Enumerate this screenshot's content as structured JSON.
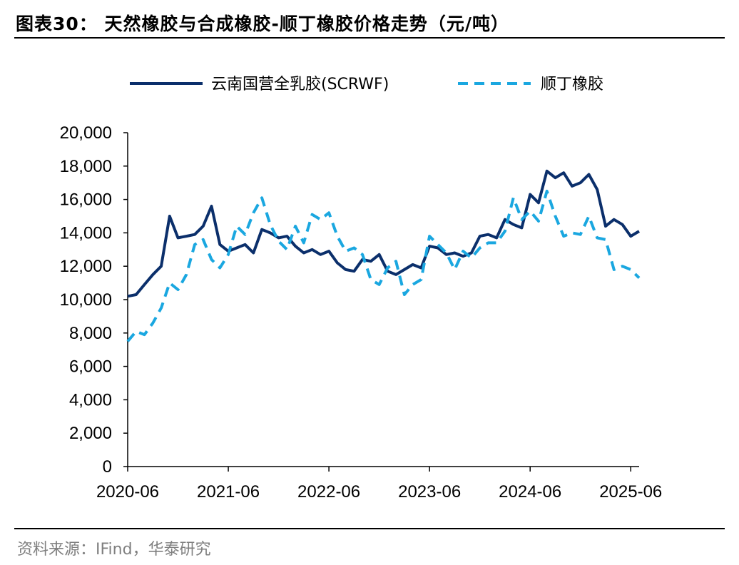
{
  "header": {
    "title": "图表30：  天然橡胶与合成橡胶-顺丁橡胶价格走势（元/吨）"
  },
  "footer": {
    "source": "资料来源：IFind，华泰研究"
  },
  "chart_data": {
    "type": "line",
    "title": "天然橡胶与合成橡胶-顺丁橡胶价格走势（元/吨）",
    "xlabel": "",
    "ylabel": "",
    "ylim": [
      0,
      20000
    ],
    "xlim": [
      "2020-06",
      "2025-07"
    ],
    "yticks": [
      0,
      2000,
      4000,
      6000,
      8000,
      10000,
      12000,
      14000,
      16000,
      18000,
      20000
    ],
    "ytick_labels": [
      "0",
      "2,000",
      "4,000",
      "6,000",
      "8,000",
      "10,000",
      "12,000",
      "14,000",
      "16,000",
      "18,000",
      "20,000"
    ],
    "xtick_labels": [
      "2020-06",
      "2021-06",
      "2022-06",
      "2023-06",
      "2024-06",
      "2025-06"
    ],
    "legend": "top",
    "grid": false,
    "series": [
      {
        "name": "云南国营全乳胶(SCRWF)",
        "color": "#0b2f6b",
        "style": "solid",
        "x": [
          "2020-06",
          "2020-07",
          "2020-08",
          "2020-09",
          "2020-10",
          "2020-11",
          "2020-12",
          "2021-01",
          "2021-02",
          "2021-03",
          "2021-04",
          "2021-05",
          "2021-06",
          "2021-07",
          "2021-08",
          "2021-09",
          "2021-10",
          "2021-11",
          "2021-12",
          "2022-01",
          "2022-02",
          "2022-03",
          "2022-04",
          "2022-05",
          "2022-06",
          "2022-07",
          "2022-08",
          "2022-09",
          "2022-10",
          "2022-11",
          "2022-12",
          "2023-01",
          "2023-02",
          "2023-03",
          "2023-04",
          "2023-05",
          "2023-06",
          "2023-07",
          "2023-08",
          "2023-09",
          "2023-10",
          "2023-11",
          "2023-12",
          "2024-01",
          "2024-02",
          "2024-03",
          "2024-04",
          "2024-05",
          "2024-06",
          "2024-07",
          "2024-08",
          "2024-09",
          "2024-10",
          "2024-11",
          "2024-12",
          "2025-01",
          "2025-02",
          "2025-03",
          "2025-04",
          "2025-05",
          "2025-06",
          "2025-07"
        ],
        "values": [
          10200,
          10300,
          10900,
          11500,
          12000,
          15000,
          13700,
          13800,
          13900,
          14400,
          15600,
          13300,
          12900,
          13100,
          13300,
          12800,
          14200,
          14000,
          13700,
          13800,
          13200,
          12800,
          13000,
          12700,
          12900,
          12200,
          11800,
          11700,
          12400,
          12300,
          12700,
          11700,
          11500,
          11800,
          12100,
          11900,
          13200,
          13100,
          12700,
          12800,
          12600,
          12800,
          13800,
          13900,
          13700,
          14800,
          14500,
          14300,
          16300,
          15800,
          17700,
          17300,
          17600,
          16800,
          17000,
          17500,
          16600,
          14400,
          14800,
          14500,
          13800,
          14100
        ]
      },
      {
        "name": "顺丁橡胶",
        "color": "#1aa7e0",
        "style": "dashed",
        "x": [
          "2020-06",
          "2020-07",
          "2020-08",
          "2020-09",
          "2020-10",
          "2020-11",
          "2020-12",
          "2021-01",
          "2021-02",
          "2021-03",
          "2021-04",
          "2021-05",
          "2021-06",
          "2021-07",
          "2021-08",
          "2021-09",
          "2021-10",
          "2021-11",
          "2021-12",
          "2022-01",
          "2022-02",
          "2022-03",
          "2022-04",
          "2022-05",
          "2022-06",
          "2022-07",
          "2022-08",
          "2022-09",
          "2022-10",
          "2022-11",
          "2022-12",
          "2023-01",
          "2023-02",
          "2023-03",
          "2023-04",
          "2023-05",
          "2023-06",
          "2023-07",
          "2023-08",
          "2023-09",
          "2023-10",
          "2023-11",
          "2023-12",
          "2024-01",
          "2024-02",
          "2024-03",
          "2024-04",
          "2024-05",
          "2024-06",
          "2024-07",
          "2024-08",
          "2024-09",
          "2024-10",
          "2024-11",
          "2024-12",
          "2025-01",
          "2025-02",
          "2025-03",
          "2025-04",
          "2025-05",
          "2025-06",
          "2025-07"
        ],
        "values": [
          7500,
          8100,
          7900,
          8600,
          9500,
          11000,
          10600,
          11500,
          13300,
          13600,
          12400,
          11900,
          12700,
          14400,
          13900,
          15200,
          16100,
          14500,
          13500,
          13000,
          14400,
          13400,
          15100,
          14800,
          15200,
          13800,
          12900,
          13100,
          12700,
          11200,
          10900,
          11900,
          12300,
          10300,
          10900,
          11200,
          13800,
          13300,
          12800,
          11800,
          12900,
          12500,
          13100,
          13400,
          13400,
          14100,
          16100,
          14800,
          15300,
          14700,
          16500,
          15000,
          13800,
          14000,
          13900,
          15000,
          13700,
          13600,
          11800,
          12000,
          11800,
          11300
        ]
      }
    ]
  }
}
